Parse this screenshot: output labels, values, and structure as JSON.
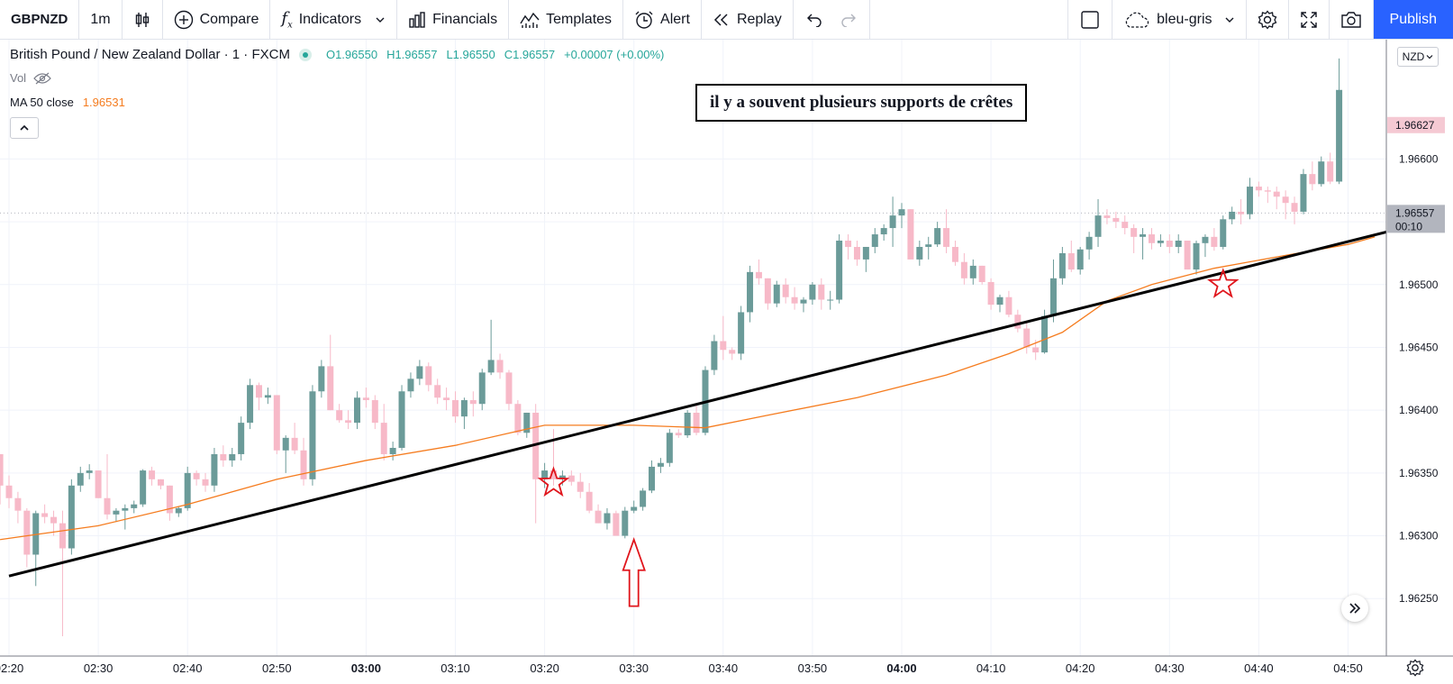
{
  "toolbar": {
    "symbol": "GBPNZD",
    "interval": "1m",
    "compare": "Compare",
    "indicators": "Indicators",
    "financials": "Financials",
    "templates": "Templates",
    "alert": "Alert",
    "replay": "Replay",
    "theme": "bleu-gris",
    "publish": "Publish"
  },
  "legend": {
    "title": "British Pound / New Zealand Dollar · 1 · FXCM",
    "open": "O1.96550",
    "high": "H1.96557",
    "low": "L1.96550",
    "close": "C1.96557",
    "change": "+0.00007 (+0.00%)",
    "vol": "Vol",
    "ma_label": "MA 50 close",
    "ma_value": "1.96531"
  },
  "currency": "NZD",
  "annotation": "il y a souvent plusieurs supports de crêtes",
  "colors": {
    "up": "#6b9b99",
    "down": "#f7b9c8",
    "ma": "#f57c1f",
    "trend": "#000000",
    "marker": "#e0151c",
    "accent": "#2962ff"
  },
  "chart_data": {
    "type": "candlestick",
    "ylim": [
      1.9621,
      1.96695
    ],
    "yticks": [
      "1.96600",
      "1.96550",
      "1.96500",
      "1.96450",
      "1.96400",
      "1.96350",
      "1.96300",
      "1.96250"
    ],
    "xticks": [
      {
        "label": "02:20",
        "i": 0,
        "bold": false
      },
      {
        "label": "02:30",
        "i": 10,
        "bold": false
      },
      {
        "label": "02:40",
        "i": 20,
        "bold": false
      },
      {
        "label": "02:50",
        "i": 30,
        "bold": false
      },
      {
        "label": "03:00",
        "i": 40,
        "bold": true
      },
      {
        "label": "03:10",
        "i": 50,
        "bold": false
      },
      {
        "label": "03:20",
        "i": 60,
        "bold": false
      },
      {
        "label": "03:30",
        "i": 70,
        "bold": false
      },
      {
        "label": "03:40",
        "i": 80,
        "bold": false
      },
      {
        "label": "03:50",
        "i": 90,
        "bold": false
      },
      {
        "label": "04:00",
        "i": 100,
        "bold": true
      },
      {
        "label": "04:10",
        "i": 110,
        "bold": false
      },
      {
        "label": "04:20",
        "i": 120,
        "bold": false
      },
      {
        "label": "04:30",
        "i": 130,
        "bold": false
      },
      {
        "label": "04:40",
        "i": 140,
        "bold": false
      },
      {
        "label": "04:50",
        "i": 150,
        "bold": false
      }
    ],
    "first_index": -1,
    "candles": [
      [
        1.96365,
        1.96365,
        1.96325,
        1.9634
      ],
      [
        1.9634,
        1.96348,
        1.96322,
        1.9633
      ],
      [
        1.9633,
        1.96335,
        1.9631,
        1.9632
      ],
      [
        1.9632,
        1.96322,
        1.96275,
        1.96285
      ],
      [
        1.96285,
        1.9632,
        1.9626,
        1.96318
      ],
      [
        1.96318,
        1.96325,
        1.9631,
        1.96315
      ],
      [
        1.96315,
        1.9632,
        1.963,
        1.9631
      ],
      [
        1.9631,
        1.9632,
        1.9622,
        1.9629
      ],
      [
        1.9629,
        1.96345,
        1.96285,
        1.9634
      ],
      [
        1.9634,
        1.96355,
        1.96335,
        1.9635
      ],
      [
        1.9635,
        1.96357,
        1.96345,
        1.96352
      ],
      [
        1.96352,
        1.96352,
        1.9633,
        1.9633
      ],
      [
        1.9633,
        1.96365,
        1.96313,
        1.96317
      ],
      [
        1.96317,
        1.96322,
        1.96311,
        1.9632
      ],
      [
        1.9632,
        1.96325,
        1.96305,
        1.96322
      ],
      [
        1.96322,
        1.96328,
        1.96318,
        1.96325
      ],
      [
        1.96325,
        1.96353,
        1.96323,
        1.96352
      ],
      [
        1.96352,
        1.96355,
        1.9634,
        1.96345
      ],
      [
        1.96345,
        1.96345,
        1.96337,
        1.9634
      ],
      [
        1.9634,
        1.9634,
        1.96312,
        1.96318
      ],
      [
        1.96318,
        1.96323,
        1.96315,
        1.96322
      ],
      [
        1.96322,
        1.96355,
        1.9632,
        1.9635
      ],
      [
        1.9635,
        1.96352,
        1.9634,
        1.96345
      ],
      [
        1.96345,
        1.9635,
        1.96335,
        1.9634
      ],
      [
        1.9634,
        1.9637,
        1.96335,
        1.96365
      ],
      [
        1.96365,
        1.96372,
        1.96355,
        1.9636
      ],
      [
        1.9636,
        1.9637,
        1.96355,
        1.96365
      ],
      [
        1.96365,
        1.96395,
        1.9636,
        1.9639
      ],
      [
        1.9639,
        1.96425,
        1.96385,
        1.9642
      ],
      [
        1.9642,
        1.96422,
        1.964,
        1.9641
      ],
      [
        1.9641,
        1.96418,
        1.96405,
        1.96412
      ],
      [
        1.96412,
        1.96412,
        1.96365,
        1.96368
      ],
      [
        1.96368,
        1.9638,
        1.9635,
        1.96378
      ],
      [
        1.96378,
        1.9639,
        1.96365,
        1.96368
      ],
      [
        1.96368,
        1.96378,
        1.9634,
        1.96345
      ],
      [
        1.96345,
        1.9642,
        1.9634,
        1.96415
      ],
      [
        1.96415,
        1.9644,
        1.9641,
        1.96435
      ],
      [
        1.96435,
        1.9646,
        1.964,
        1.964
      ],
      [
        1.964,
        1.96405,
        1.9639,
        1.96392
      ],
      [
        1.96392,
        1.964,
        1.96385,
        1.9639
      ],
      [
        1.9639,
        1.96415,
        1.96385,
        1.9641
      ],
      [
        1.9641,
        1.96418,
        1.96402,
        1.96408
      ],
      [
        1.96408,
        1.96412,
        1.96385,
        1.9639
      ],
      [
        1.9639,
        1.96405,
        1.9636,
        1.96365
      ],
      [
        1.96365,
        1.96375,
        1.9636,
        1.9637
      ],
      [
        1.9637,
        1.9642,
        1.96368,
        1.96415
      ],
      [
        1.96415,
        1.9643,
        1.9641,
        1.96425
      ],
      [
        1.96425,
        1.9644,
        1.9642,
        1.96435
      ],
      [
        1.96435,
        1.96438,
        1.96415,
        1.9642
      ],
      [
        1.9642,
        1.96425,
        1.96405,
        1.9641
      ],
      [
        1.9641,
        1.96418,
        1.964,
        1.96408
      ],
      [
        1.96408,
        1.96415,
        1.9639,
        1.96395
      ],
      [
        1.96395,
        1.9641,
        1.96385,
        1.96408
      ],
      [
        1.96408,
        1.96415,
        1.96395,
        1.96405
      ],
      [
        1.96405,
        1.96433,
        1.964,
        1.9643
      ],
      [
        1.9643,
        1.96472,
        1.96428,
        1.9644
      ],
      [
        1.9644,
        1.96445,
        1.96425,
        1.9643
      ],
      [
        1.9643,
        1.96432,
        1.964,
        1.96405
      ],
      [
        1.96405,
        1.96408,
        1.9638,
        1.96382
      ],
      [
        1.96382,
        1.96398,
        1.96378,
        1.96398
      ],
      [
        1.96398,
        1.96405,
        1.9631,
        1.96345
      ],
      [
        1.96345,
        1.96358,
        1.96338,
        1.96352
      ],
      [
        1.96352,
        1.96385,
        1.9634,
        1.96345
      ],
      [
        1.96345,
        1.96352,
        1.9634,
        1.96348
      ],
      [
        1.96348,
        1.96352,
        1.9634,
        1.96343
      ],
      [
        1.96343,
        1.9635,
        1.9633,
        1.96335
      ],
      [
        1.96335,
        1.96342,
        1.96318,
        1.9632
      ],
      [
        1.9632,
        1.96325,
        1.9631,
        1.9631
      ],
      [
        1.9631,
        1.96322,
        1.96305,
        1.96318
      ],
      [
        1.96318,
        1.9632,
        1.963,
        1.963
      ],
      [
        1.963,
        1.96323,
        1.96298,
        1.9632
      ],
      [
        1.9632,
        1.96328,
        1.96318,
        1.96323
      ],
      [
        1.96323,
        1.96338,
        1.9632,
        1.96336
      ],
      [
        1.96336,
        1.9636,
        1.96334,
        1.96355
      ],
      [
        1.96355,
        1.96362,
        1.9635,
        1.96358
      ],
      [
        1.96358,
        1.96385,
        1.96355,
        1.96382
      ],
      [
        1.96382,
        1.96385,
        1.96378,
        1.9638
      ],
      [
        1.9638,
        1.964,
        1.96378,
        1.96398
      ],
      [
        1.96398,
        1.96405,
        1.9638,
        1.96382
      ],
      [
        1.96382,
        1.96435,
        1.9638,
        1.96432
      ],
      [
        1.96432,
        1.9646,
        1.96428,
        1.96455
      ],
      [
        1.96455,
        1.96475,
        1.9644,
        1.96448
      ],
      [
        1.96448,
        1.9645,
        1.9644,
        1.96445
      ],
      [
        1.96445,
        1.96483,
        1.9644,
        1.96478
      ],
      [
        1.96478,
        1.96515,
        1.9647,
        1.9651
      ],
      [
        1.9651,
        1.9652,
        1.965,
        1.96505
      ],
      [
        1.96505,
        1.96505,
        1.9648,
        1.96485
      ],
      [
        1.96485,
        1.96503,
        1.96482,
        1.965
      ],
      [
        1.965,
        1.96505,
        1.96485,
        1.9649
      ],
      [
        1.9649,
        1.96498,
        1.9648,
        1.96485
      ],
      [
        1.96485,
        1.9649,
        1.96478,
        1.96488
      ],
      [
        1.96488,
        1.96502,
        1.96484,
        1.965
      ],
      [
        1.965,
        1.96505,
        1.9648,
        1.96488
      ],
      [
        1.96488,
        1.96495,
        1.9648,
        1.96488
      ],
      [
        1.96488,
        1.9654,
        1.96485,
        1.96535
      ],
      [
        1.96535,
        1.9654,
        1.9652,
        1.9653
      ],
      [
        1.9653,
        1.96535,
        1.96515,
        1.9652
      ],
      [
        1.9652,
        1.9653,
        1.9651,
        1.9653
      ],
      [
        1.9653,
        1.96545,
        1.96525,
        1.9654
      ],
      [
        1.9654,
        1.96548,
        1.96535,
        1.96545
      ],
      [
        1.96545,
        1.9657,
        1.9653,
        1.96555
      ],
      [
        1.96555,
        1.96565,
        1.96545,
        1.9656
      ],
      [
        1.9656,
        1.9656,
        1.9652,
        1.9652
      ],
      [
        1.9652,
        1.96535,
        1.96515,
        1.9653
      ],
      [
        1.9653,
        1.96538,
        1.9652,
        1.96532
      ],
      [
        1.96532,
        1.9655,
        1.9653,
        1.96545
      ],
      [
        1.96545,
        1.9656,
        1.96525,
        1.9653
      ],
      [
        1.9653,
        1.96535,
        1.96515,
        1.96518
      ],
      [
        1.96518,
        1.96525,
        1.965,
        1.96505
      ],
      [
        1.96505,
        1.9652,
        1.965,
        1.96515
      ],
      [
        1.96515,
        1.96515,
        1.965,
        1.96502
      ],
      [
        1.96502,
        1.96505,
        1.9648,
        1.96484
      ],
      [
        1.96484,
        1.96492,
        1.96478,
        1.9649
      ],
      [
        1.9649,
        1.96495,
        1.96474,
        1.96476
      ],
      [
        1.96476,
        1.9648,
        1.96462,
        1.96465
      ],
      [
        1.96465,
        1.9647,
        1.96445,
        1.9645
      ],
      [
        1.9645,
        1.96456,
        1.9644,
        1.96446
      ],
      [
        1.96446,
        1.9648,
        1.96445,
        1.96475
      ],
      [
        1.96475,
        1.9652,
        1.9647,
        1.96505
      ],
      [
        1.96505,
        1.9653,
        1.965,
        1.96525
      ],
      [
        1.96525,
        1.96535,
        1.9651,
        1.96512
      ],
      [
        1.96512,
        1.9653,
        1.96508,
        1.96528
      ],
      [
        1.96528,
        1.96542,
        1.9652,
        1.96538
      ],
      [
        1.96538,
        1.96568,
        1.9653,
        1.96555
      ],
      [
        1.96555,
        1.9656,
        1.96548,
        1.96553
      ],
      [
        1.96553,
        1.96558,
        1.96545,
        1.9655
      ],
      [
        1.9655,
        1.96555,
        1.9654,
        1.96545
      ],
      [
        1.96545,
        1.96548,
        1.96525,
        1.96538
      ],
      [
        1.96538,
        1.96545,
        1.9652,
        1.9654
      ],
      [
        1.9654,
        1.96545,
        1.96528,
        1.96533
      ],
      [
        1.96533,
        1.9654,
        1.9653,
        1.96535
      ],
      [
        1.96535,
        1.9654,
        1.96525,
        1.9653
      ],
      [
        1.9653,
        1.9654,
        1.96525,
        1.96535
      ],
      [
        1.96535,
        1.96535,
        1.96512,
        1.96512
      ],
      [
        1.96512,
        1.96535,
        1.96508,
        1.96533
      ],
      [
        1.96533,
        1.9654,
        1.96522,
        1.96538
      ],
      [
        1.96538,
        1.96545,
        1.96527,
        1.9653
      ],
      [
        1.9653,
        1.96555,
        1.96528,
        1.96552
      ],
      [
        1.96552,
        1.96562,
        1.96548,
        1.96558
      ],
      [
        1.96558,
        1.96568,
        1.96548,
        1.96556
      ],
      [
        1.96556,
        1.96585,
        1.96552,
        1.96578
      ],
      [
        1.96578,
        1.96582,
        1.9657,
        1.96575
      ],
      [
        1.96575,
        1.96578,
        1.96565,
        1.96574
      ],
      [
        1.96574,
        1.96578,
        1.9656,
        1.9657
      ],
      [
        1.9657,
        1.96575,
        1.96552,
        1.96565
      ],
      [
        1.96565,
        1.9657,
        1.96548,
        1.96558
      ],
      [
        1.96558,
        1.96592,
        1.96556,
        1.96588
      ],
      [
        1.96588,
        1.96598,
        1.96575,
        1.9658
      ],
      [
        1.9658,
        1.96602,
        1.96578,
        1.96598
      ],
      [
        1.96598,
        1.96605,
        1.9658,
        1.96582
      ],
      [
        1.96582,
        1.9668,
        1.9658,
        1.96655
      ]
    ],
    "ma50": [
      [
        -1,
        1.96297
      ],
      [
        10,
        1.96308
      ],
      [
        20,
        1.96325
      ],
      [
        30,
        1.96345
      ],
      [
        40,
        1.9636
      ],
      [
        50,
        1.96372
      ],
      [
        58,
        1.96385
      ],
      [
        60,
        1.96388
      ],
      [
        70,
        1.96388
      ],
      [
        78,
        1.96386
      ],
      [
        85,
        1.96396
      ],
      [
        95,
        1.9641
      ],
      [
        105,
        1.96428
      ],
      [
        112,
        1.96445
      ],
      [
        118,
        1.96462
      ],
      [
        123,
        1.96487
      ],
      [
        128,
        1.965
      ],
      [
        135,
        1.96513
      ],
      [
        142,
        1.96522
      ],
      [
        150,
        1.96532
      ],
      [
        153,
        1.96538
      ]
    ],
    "trendline": [
      [
        0,
        1.96268
      ],
      [
        160,
        1.96552
      ]
    ],
    "markers": [
      {
        "type": "star",
        "i": 61,
        "y": 1.96342
      },
      {
        "type": "star",
        "i": 136,
        "y": 1.965
      },
      {
        "type": "arrow-up",
        "i": 70,
        "y": 1.96297,
        "y_end": 1.96244
      }
    ],
    "price_labels": [
      {
        "text": "1.96627",
        "y": 1.96627,
        "bg": "#f5c9d3"
      },
      {
        "text": "1.96557",
        "y": 1.96557,
        "bg": "#b2b5be"
      }
    ],
    "countdown": "00:10",
    "last_price": 1.96557
  }
}
